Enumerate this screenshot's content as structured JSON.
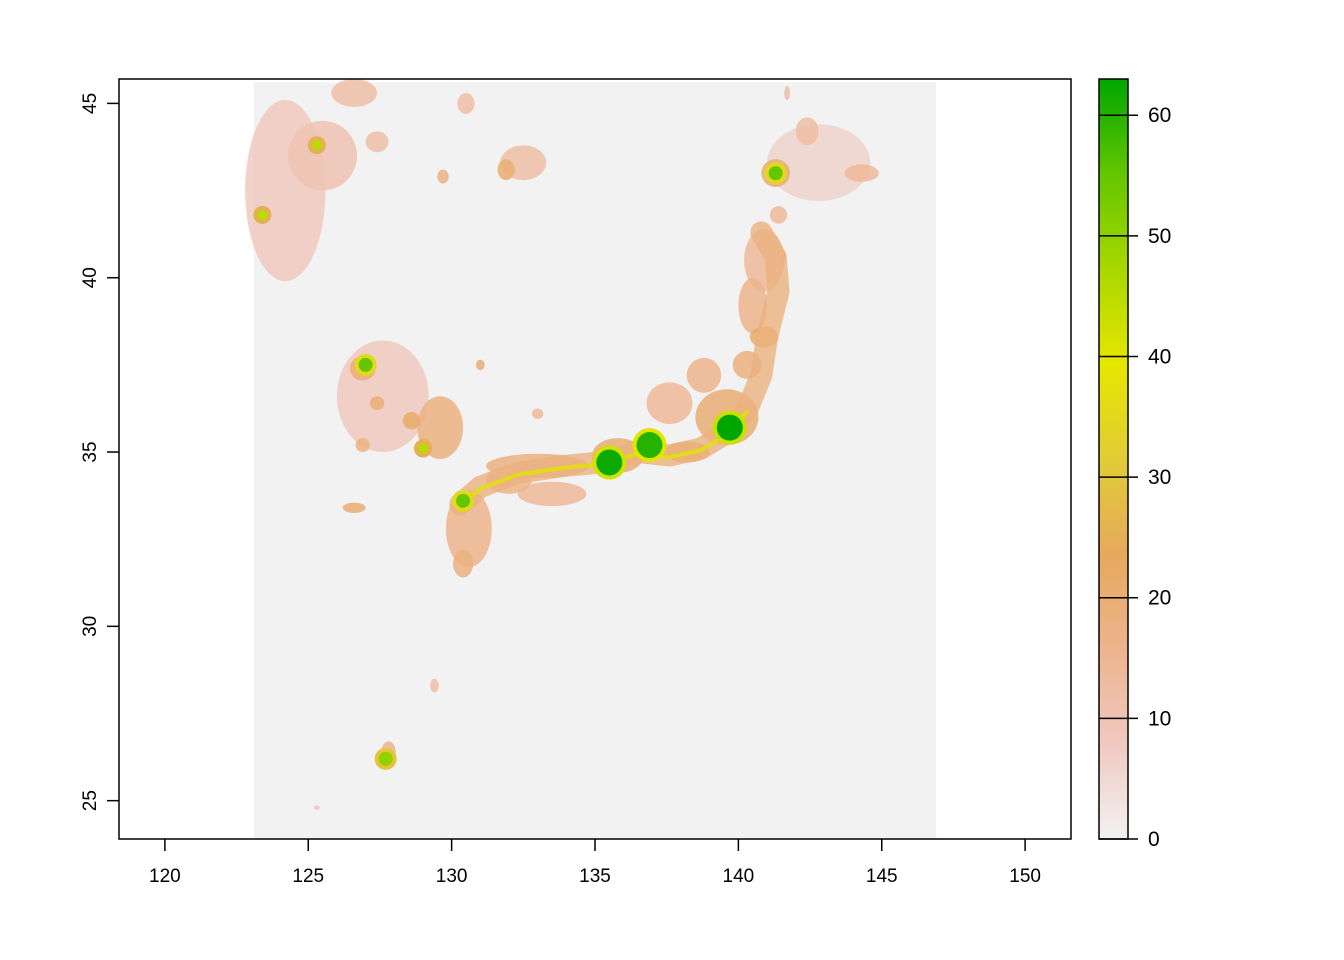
{
  "map": {
    "x_axis": {
      "range": [
        118.4,
        151.6
      ],
      "ticks": [
        120,
        125,
        130,
        135,
        140,
        145,
        150
      ]
    },
    "y_axis": {
      "range": [
        23.9,
        45.7
      ],
      "ticks": [
        25,
        30,
        35,
        40,
        45
      ]
    },
    "raster_extent": {
      "x": [
        123.1,
        146.9
      ],
      "y": [
        23.9,
        45.6
      ]
    },
    "legend": {
      "range": [
        0,
        63
      ],
      "ticks": [
        0,
        10,
        20,
        30,
        40,
        50,
        60
      ],
      "palette": [
        "#f2f2f2",
        "#f0c9c0",
        "#edb48e",
        "#e6a95c",
        "#e1cc36",
        "#e6e600",
        "#a9d700",
        "#63c600",
        "#00a600"
      ]
    },
    "background_color": "#f2f2f2"
  },
  "chart_data": {
    "type": "heatmap",
    "title": "",
    "xlabel": "",
    "ylabel": "",
    "xlim": [
      118.4,
      151.6
    ],
    "ylim": [
      23.9,
      45.7
    ],
    "zlim": [
      0,
      63
    ],
    "colorbar_ticks": [
      0,
      10,
      20,
      30,
      40,
      50,
      60
    ],
    "grid": false,
    "legend_position": "right",
    "high_value_areas": [
      {
        "lon": 139.7,
        "lat": 35.7,
        "value": 63
      },
      {
        "lon": 136.9,
        "lat": 35.2,
        "value": 60
      },
      {
        "lon": 135.5,
        "lat": 34.7,
        "value": 62
      },
      {
        "lon": 141.3,
        "lat": 43.0,
        "value": 55
      },
      {
        "lon": 130.4,
        "lat": 33.6,
        "value": 55
      },
      {
        "lon": 127.0,
        "lat": 37.5,
        "value": 55
      },
      {
        "lon": 129.0,
        "lat": 35.1,
        "value": 45
      },
      {
        "lon": 127.7,
        "lat": 26.2,
        "value": 50
      },
      {
        "lon": 125.3,
        "lat": 43.8,
        "value": 45
      },
      {
        "lon": 123.4,
        "lat": 41.8,
        "value": 45
      }
    ]
  }
}
